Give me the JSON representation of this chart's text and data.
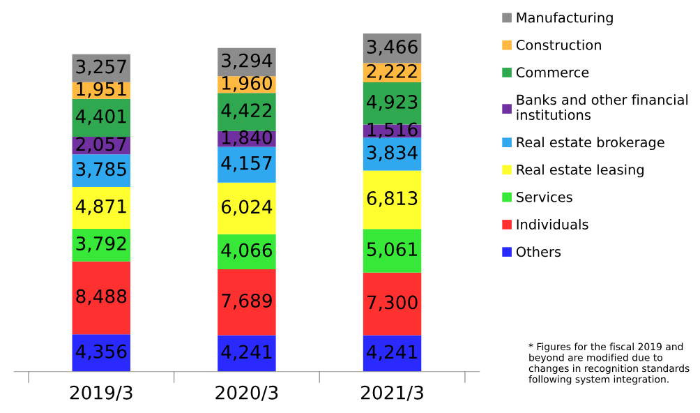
{
  "chart_data": {
    "type": "bar",
    "stacked": true,
    "legend": "right",
    "grid": false,
    "tick_labels": "x",
    "categories": [
      "2019/3",
      "2020/3",
      "2021/3"
    ],
    "series": [
      {
        "name": "Others",
        "color": "#2a2aff",
        "values": [
          4356,
          4241,
          4241
        ],
        "value_labels": [
          "4,356",
          "4,241",
          "4,241"
        ]
      },
      {
        "name": "Individuals",
        "color": "#ff3030",
        "values": [
          8488,
          7689,
          7300
        ],
        "value_labels": [
          "8,488",
          "7,689",
          "7,300"
        ]
      },
      {
        "name": "Services",
        "color": "#38e838",
        "values": [
          3792,
          4066,
          5061
        ],
        "value_labels": [
          "3,792",
          "4,066",
          "5,061"
        ]
      },
      {
        "name": "Real estate leasing",
        "color": "#ffff30",
        "values": [
          4871,
          6024,
          6813
        ],
        "value_labels": [
          "4,871",
          "6,024",
          "6,813"
        ]
      },
      {
        "name": "Real estate brokerage",
        "color": "#30a8f0",
        "values": [
          3785,
          4157,
          3834
        ],
        "value_labels": [
          "3,785",
          "4,157",
          "3,834"
        ]
      },
      {
        "name": "Banks and other financial institutions",
        "color": "#7030a0",
        "values": [
          2057,
          1840,
          1516
        ],
        "value_labels": [
          "2,057",
          "1,840",
          "1,516"
        ]
      },
      {
        "name": "Commerce",
        "color": "#30a850",
        "values": [
          4401,
          4422,
          4923
        ],
        "value_labels": [
          "4,401",
          "4,422",
          "4,923"
        ]
      },
      {
        "name": "Construction",
        "color": "#ffb840",
        "values": [
          1951,
          1960,
          2222
        ],
        "value_labels": [
          "1,951",
          "1,960",
          "2,222"
        ]
      },
      {
        "name": "Manufacturing",
        "color": "#8c8c8c",
        "values": [
          3257,
          3294,
          3466
        ],
        "value_labels": [
          "3,257",
          "3,294",
          "3,466"
        ]
      }
    ],
    "annotations": [
      "* Figures for the fiscal 2019 and beyond are modified due to changes in recognition standards following system integration."
    ]
  }
}
